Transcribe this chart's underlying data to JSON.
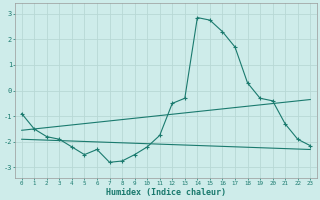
{
  "xlabel": "Humidex (Indice chaleur)",
  "bg_color": "#ceecea",
  "grid_color": "#b8d8d5",
  "line_color": "#1a7a6e",
  "xlim": [
    -0.5,
    23.5
  ],
  "ylim": [
    -3.4,
    3.4
  ],
  "yticks": [
    -3,
    -2,
    -1,
    0,
    1,
    2,
    3
  ],
  "xticks": [
    0,
    1,
    2,
    3,
    4,
    5,
    6,
    7,
    8,
    9,
    10,
    11,
    12,
    13,
    14,
    15,
    16,
    17,
    18,
    19,
    20,
    21,
    22,
    23
  ],
  "line1_x": [
    0,
    1,
    2,
    3,
    4,
    5,
    6,
    7,
    8,
    9,
    10,
    11,
    12,
    13,
    14,
    15,
    16,
    17,
    18,
    19,
    20,
    21,
    22,
    23
  ],
  "line1_y": [
    -0.9,
    -1.5,
    -1.8,
    -1.9,
    -2.2,
    -2.5,
    -2.3,
    -2.8,
    -2.75,
    -2.5,
    -2.2,
    -1.75,
    -0.5,
    -0.3,
    2.85,
    2.75,
    2.3,
    1.7,
    0.3,
    -0.3,
    -0.4,
    -1.3,
    -1.9,
    -2.15
  ],
  "line2_x": [
    0,
    23
  ],
  "line2_y": [
    -1.55,
    -0.35
  ],
  "line3_x": [
    0,
    23
  ],
  "line3_y": [
    -1.9,
    -2.3
  ]
}
